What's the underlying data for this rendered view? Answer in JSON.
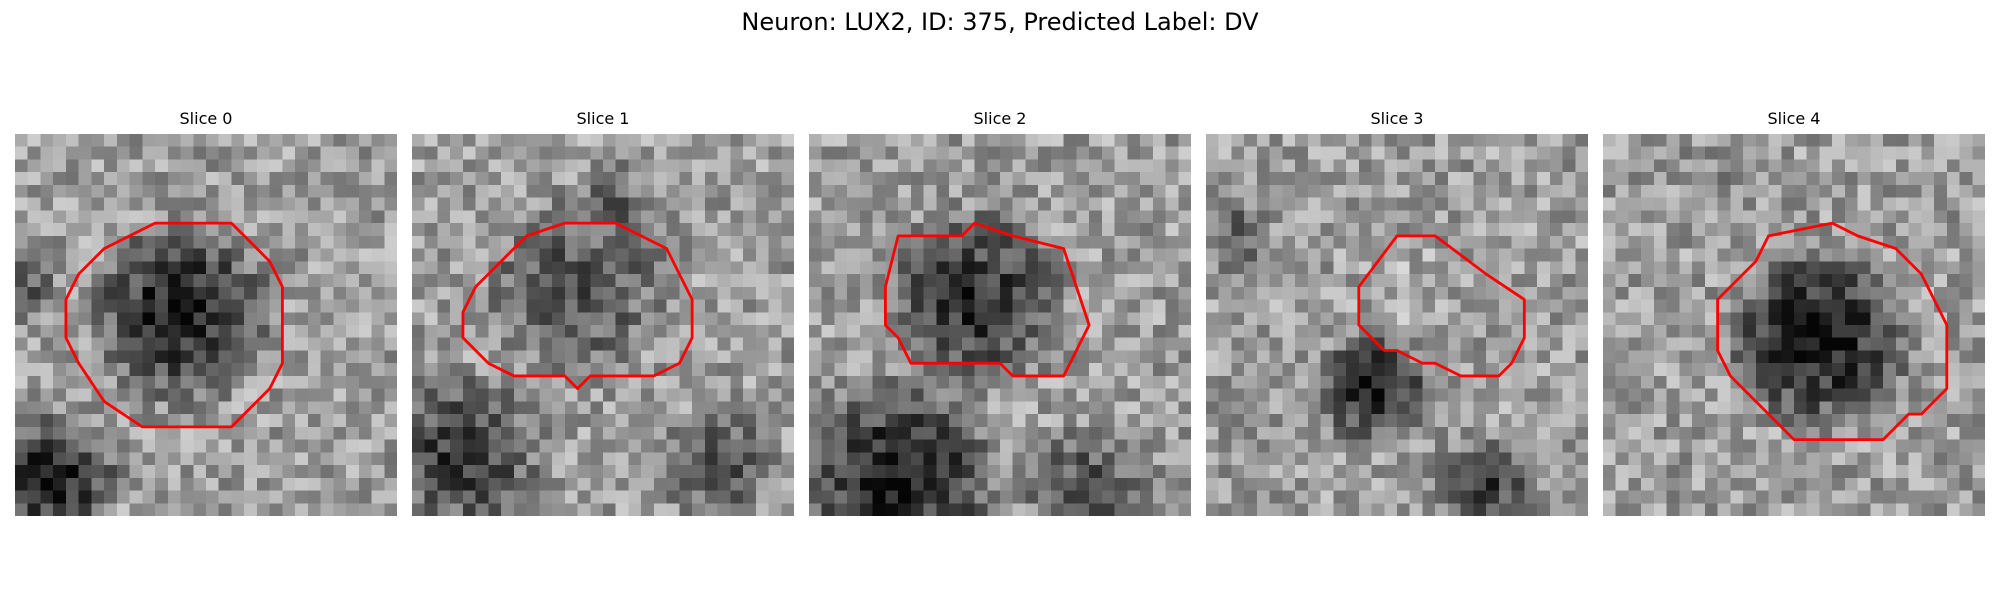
{
  "figure": {
    "title": "Neuron: LUX2, ID: 375, Predicted Label: DV"
  },
  "panels": [
    {
      "title": "Slice 0",
      "image_style": "grayscale",
      "mask_contour_color": "#ff0000",
      "dark_blob": "upper-left-center"
    },
    {
      "title": "Slice 1",
      "image_style": "grayscale",
      "mask_contour_color": "#ff0000",
      "dark_blob": "center"
    },
    {
      "title": "Slice 2",
      "image_style": "grayscale",
      "mask_contour_color": "#ff0000",
      "dark_blob": "center"
    },
    {
      "title": "Slice 3",
      "image_style": "grayscale",
      "mask_contour_color": "#ff0000",
      "dark_blob": "lower-left"
    },
    {
      "title": "Slice 4",
      "image_style": "grayscale",
      "mask_contour_color": "#ff0000",
      "dark_blob": "center"
    }
  ]
}
